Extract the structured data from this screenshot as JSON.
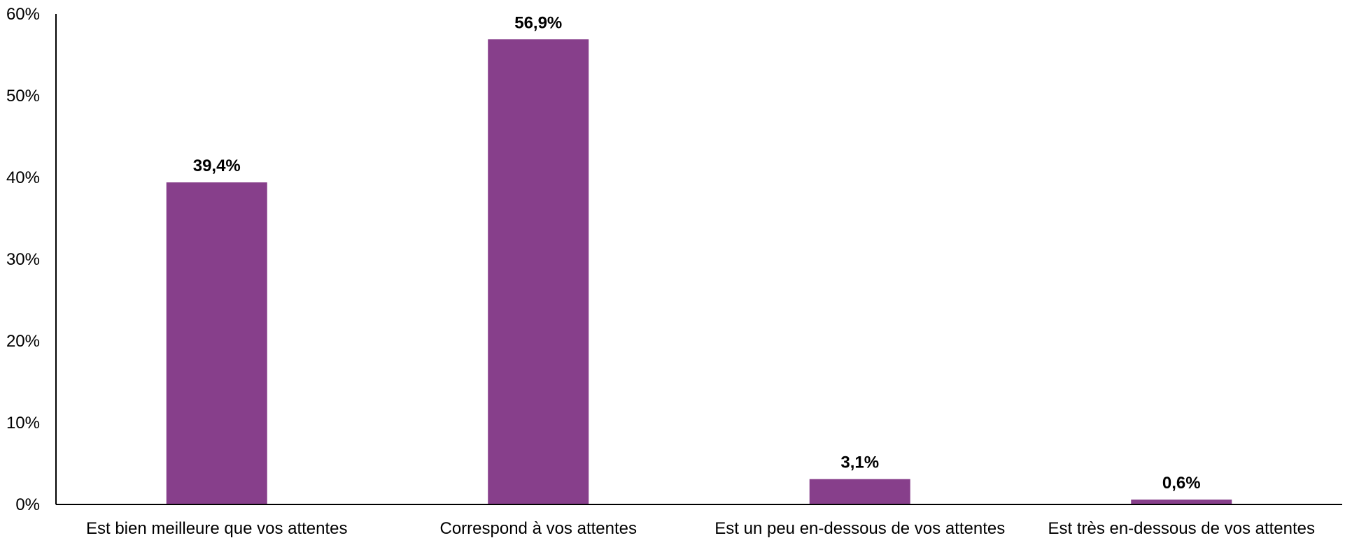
{
  "chart_data": {
    "type": "bar",
    "title": "",
    "xlabel": "",
    "ylabel": "",
    "categories": [
      "Est bien meilleure que vos attentes",
      "Correspond à vos attentes",
      "Est un peu en-dessous de vos attentes",
      "Est très en-dessous de vos attentes"
    ],
    "values": [
      39.4,
      56.9,
      3.1,
      0.6
    ],
    "data_labels": [
      "39,4%",
      "56,9%",
      "3,1%",
      "0,6%"
    ],
    "ylim": [
      0,
      60
    ],
    "y_ticks": [
      0,
      10,
      20,
      30,
      40,
      50,
      60
    ],
    "y_tick_labels": [
      "0%",
      "10%",
      "20%",
      "30%",
      "40%",
      "50%",
      "60%"
    ],
    "grid": false,
    "legend": "none",
    "bar_color": "#873F8B"
  }
}
